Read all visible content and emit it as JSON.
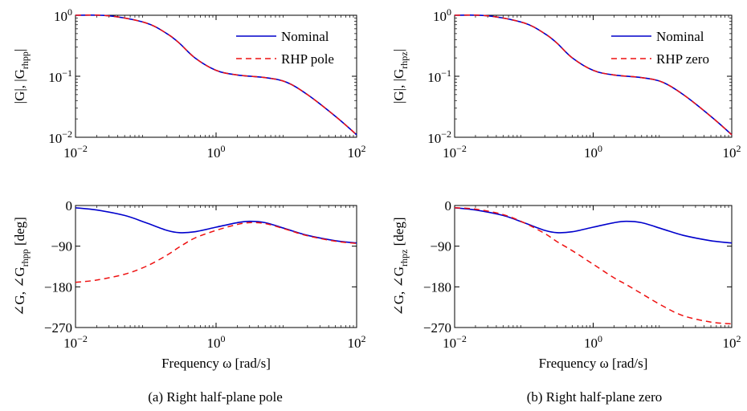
{
  "captions": {
    "a": "(a) Right half-plane pole",
    "b": "(b) Right half-plane zero"
  },
  "chart_data": [
    {
      "id": "a-mag",
      "type": "line",
      "scale": {
        "x": "log",
        "y": "log"
      },
      "xlim": [
        0.01,
        100
      ],
      "ylim": [
        0.01,
        1
      ],
      "xticks": [
        0.01,
        1,
        100
      ],
      "xtick_labels": [
        {
          "base": "10",
          "exp": "−2"
        },
        {
          "base": "10",
          "exp": "0"
        },
        {
          "base": "10",
          "exp": "2"
        }
      ],
      "yticks": [
        0.01,
        0.1,
        1
      ],
      "ytick_labels": [
        {
          "base": "10",
          "exp": "−2"
        },
        {
          "base": "10",
          "exp": "−1"
        },
        {
          "base": "10",
          "exp": "0"
        }
      ],
      "ylabel": {
        "main": "|G|, |G",
        "sub": "rhpp",
        "end": "|"
      },
      "xlabel": "",
      "legend": {
        "placement": "top-right"
      },
      "x": [
        0.01,
        0.03,
        0.1,
        0.2,
        0.3,
        0.5,
        1,
        2,
        5,
        10,
        20,
        50,
        100
      ],
      "series": [
        {
          "name": "Nominal",
          "color": "#0000cc",
          "dash": "solid",
          "y": [
            1.0,
            0.98,
            0.75,
            0.5,
            0.35,
            0.2,
            0.125,
            0.105,
            0.095,
            0.08,
            0.05,
            0.022,
            0.011
          ]
        },
        {
          "name": "RHP pole",
          "color": "#ee1111",
          "dash": "dashed",
          "y": [
            1.0,
            0.98,
            0.75,
            0.5,
            0.35,
            0.2,
            0.125,
            0.105,
            0.095,
            0.08,
            0.05,
            0.022,
            0.011
          ]
        }
      ]
    },
    {
      "id": "a-phase",
      "type": "line",
      "scale": {
        "x": "log",
        "y": "linear"
      },
      "xlim": [
        0.01,
        100
      ],
      "ylim": [
        -270,
        0
      ],
      "xticks": [
        0.01,
        1,
        100
      ],
      "xtick_labels": [
        {
          "base": "10",
          "exp": "−2"
        },
        {
          "base": "10",
          "exp": "0"
        },
        {
          "base": "10",
          "exp": "2"
        }
      ],
      "yticks": [
        0,
        -90,
        -180,
        -270
      ],
      "ytick_labels": [
        "0",
        "−90",
        "−180",
        "−270"
      ],
      "ylabel": {
        "main": "∠G, ∠G",
        "sub": "rhpp",
        "end": " [deg]"
      },
      "xlabel": "Frequency ω [rad/s]",
      "x": [
        0.01,
        0.02,
        0.05,
        0.1,
        0.2,
        0.3,
        0.5,
        1,
        2,
        3,
        5,
        10,
        20,
        50,
        100
      ],
      "series": [
        {
          "name": "Nominal",
          "color": "#0000cc",
          "dash": "solid",
          "y": [
            -5,
            -10,
            -22,
            -38,
            -55,
            -60,
            -58,
            -48,
            -38,
            -35,
            -38,
            -52,
            -66,
            -78,
            -83
          ]
        },
        {
          "name": "RHP pole",
          "color": "#ee1111",
          "dash": "dashed",
          "y": [
            -170,
            -165,
            -152,
            -135,
            -110,
            -92,
            -72,
            -55,
            -42,
            -38,
            -40,
            -53,
            -67,
            -79,
            -84
          ]
        }
      ]
    },
    {
      "id": "b-mag",
      "type": "line",
      "scale": {
        "x": "log",
        "y": "log"
      },
      "xlim": [
        0.01,
        100
      ],
      "ylim": [
        0.01,
        1
      ],
      "xticks": [
        0.01,
        1,
        100
      ],
      "xtick_labels": [
        {
          "base": "10",
          "exp": "−2"
        },
        {
          "base": "10",
          "exp": "0"
        },
        {
          "base": "10",
          "exp": "2"
        }
      ],
      "yticks": [
        0.01,
        0.1,
        1
      ],
      "ytick_labels": [
        {
          "base": "10",
          "exp": "−2"
        },
        {
          "base": "10",
          "exp": "−1"
        },
        {
          "base": "10",
          "exp": "0"
        }
      ],
      "ylabel": {
        "main": "|G|, |G",
        "sub": "rhpz",
        "end": "|"
      },
      "xlabel": "",
      "legend": {
        "placement": "top-right"
      },
      "x": [
        0.01,
        0.03,
        0.1,
        0.2,
        0.3,
        0.5,
        1,
        2,
        5,
        10,
        20,
        50,
        100
      ],
      "series": [
        {
          "name": "Nominal",
          "color": "#0000cc",
          "dash": "solid",
          "y": [
            1.0,
            0.98,
            0.75,
            0.5,
            0.35,
            0.2,
            0.125,
            0.105,
            0.095,
            0.08,
            0.05,
            0.022,
            0.011
          ]
        },
        {
          "name": "RHP zero",
          "color": "#ee1111",
          "dash": "dashed",
          "y": [
            1.0,
            0.98,
            0.75,
            0.5,
            0.35,
            0.2,
            0.125,
            0.105,
            0.095,
            0.08,
            0.05,
            0.022,
            0.011
          ]
        }
      ]
    },
    {
      "id": "b-phase",
      "type": "line",
      "scale": {
        "x": "log",
        "y": "linear"
      },
      "xlim": [
        0.01,
        100
      ],
      "ylim": [
        -270,
        0
      ],
      "xticks": [
        0.01,
        1,
        100
      ],
      "xtick_labels": [
        {
          "base": "10",
          "exp": "−2"
        },
        {
          "base": "10",
          "exp": "0"
        },
        {
          "base": "10",
          "exp": "2"
        }
      ],
      "yticks": [
        0,
        -90,
        -180,
        -270
      ],
      "ytick_labels": [
        "0",
        "−90",
        "−180",
        "−270"
      ],
      "ylabel": {
        "main": "∠G, ∠G",
        "sub": "rhpz",
        "end": " [deg]"
      },
      "xlabel": "Frequency ω [rad/s]",
      "x": [
        0.01,
        0.02,
        0.05,
        0.1,
        0.2,
        0.3,
        0.5,
        1,
        2,
        3,
        5,
        10,
        20,
        50,
        100
      ],
      "series": [
        {
          "name": "Nominal",
          "color": "#0000cc",
          "dash": "solid",
          "y": [
            -5,
            -10,
            -22,
            -38,
            -55,
            -60,
            -58,
            -48,
            -38,
            -35,
            -38,
            -52,
            -66,
            -78,
            -83
          ]
        },
        {
          "name": "RHP zero",
          "color": "#ee1111",
          "dash": "dashed",
          "y": [
            -5,
            -8,
            -20,
            -38,
            -62,
            -80,
            -100,
            -130,
            -160,
            -175,
            -195,
            -222,
            -244,
            -258,
            -262
          ]
        }
      ]
    }
  ]
}
